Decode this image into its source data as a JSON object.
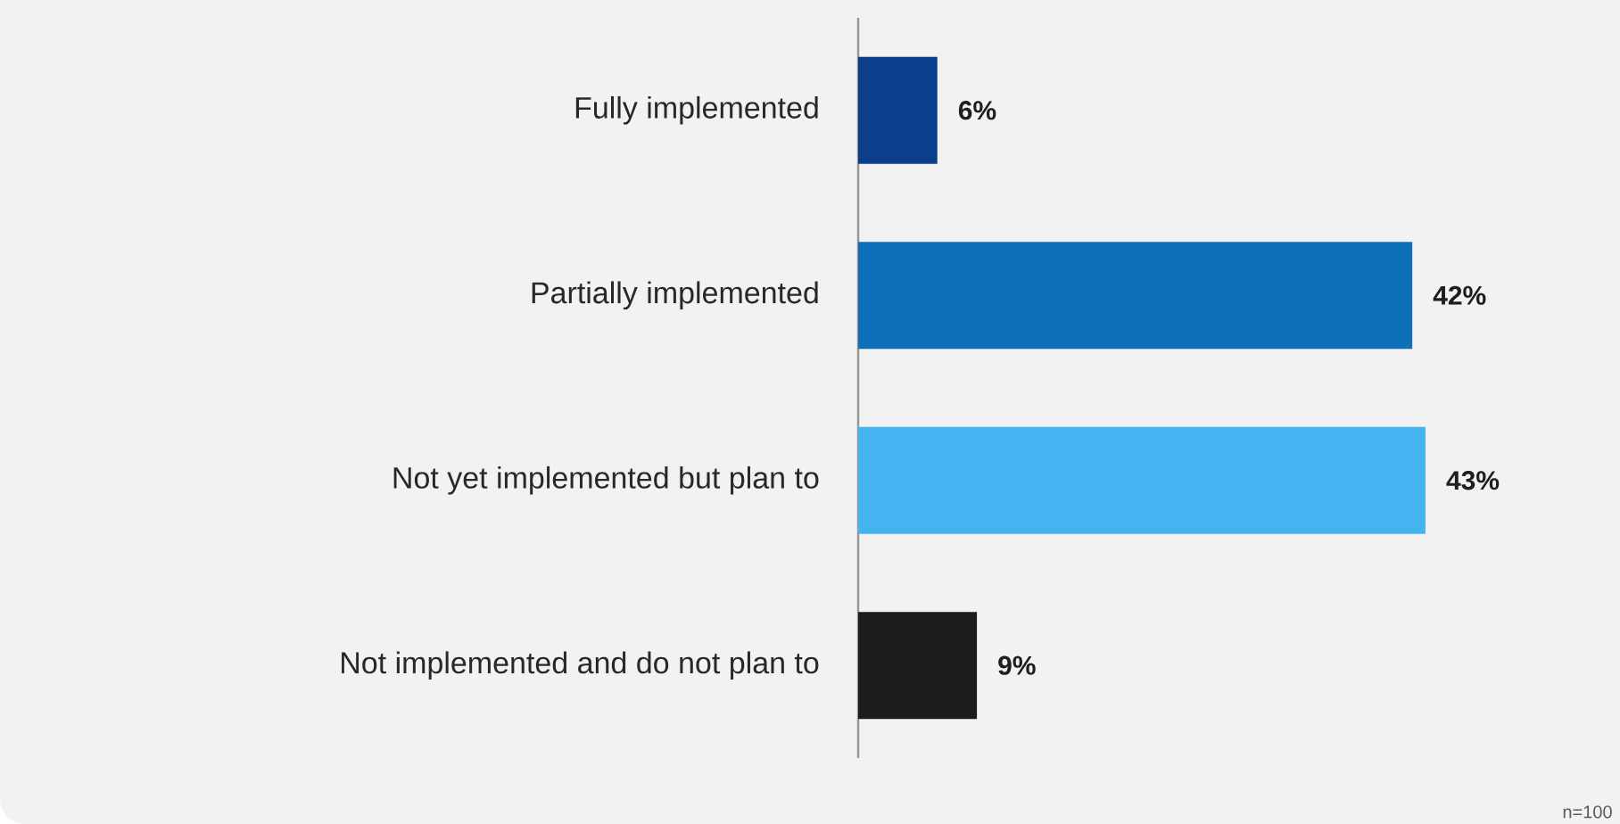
{
  "chart_data": {
    "type": "bar",
    "orientation": "horizontal",
    "categories": [
      "Fully implemented",
      "Partially implemented",
      "Not yet implemented but plan to",
      "Not implemented and do not plan to"
    ],
    "values": [
      6,
      42,
      43,
      9
    ],
    "value_labels": [
      "6%",
      "42%",
      "43%",
      "9%"
    ],
    "colors": [
      "#0b3f8c",
      "#0e70b9",
      "#43b4f0",
      "#1c1c1c"
    ],
    "annotations": [
      "n=100"
    ]
  }
}
